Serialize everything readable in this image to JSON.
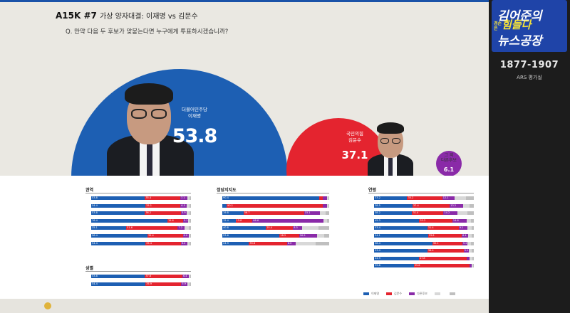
{
  "header": {
    "code": "A15K #7",
    "subtitle": "가상 양자대결: 이재명 vs 김문수",
    "question": "Q. 만약 다음 두 후보가 맞붙는다면 누구에게 투표하시겠습니까?"
  },
  "chart_data": {
    "type": "bubble",
    "candidates": [
      {
        "party": "더불어민주당",
        "name": "이재명",
        "value": 53.8,
        "color": "#1d5fb3"
      },
      {
        "party": "국민의힘",
        "name": "김문수",
        "value": 37.1,
        "color": "#e4242f"
      },
      {
        "party": "그 외",
        "name": "다른후보",
        "value": 6.1,
        "color": "#8a2aa8"
      }
    ],
    "sections": [
      {
        "title": "권역",
        "rows": [
          {
            "values": [
              53.8,
              35.4,
              7.1
            ]
          },
          {
            "values": [
              54.4,
              35.1,
              6.5
            ]
          },
          {
            "values": [
              53.8,
              36.2,
              5.9
            ]
          },
          {
            "values": [
              76.4,
              15.6,
              5.1
            ]
          },
          {
            "values": [
              35.1,
              51.6,
              7.2
            ]
          },
          {
            "values": [
              56.4,
              35.4,
              6.0
            ]
          },
          {
            "values": [
              54.4,
              35.4,
              6.4
            ]
          }
        ]
      },
      {
        "title": "성별",
        "rows": [
          {
            "values": [
              53.8,
              37.6,
              6.4
            ]
          },
          {
            "values": [
              54.4,
              35.9,
              5.9
            ]
          }
        ]
      },
      {
        "title": "정당지지도",
        "rows": [
          {
            "values": [
              90.4,
              3.8,
              4.1
            ]
          },
          {
            "values": [
              4.1,
              90.1,
              3.9
            ]
          },
          {
            "values": [
              19.8,
              56.7,
              15.1
            ]
          },
          {
            "values": [
              12.4,
              15.8,
              66.6
            ]
          },
          {
            "values": [
              40.8,
              25.4,
              8.5
            ]
          },
          {
            "values": [
              53.6,
              18.2,
              16.9
            ]
          },
          {
            "values": [
              24.9,
              35.6,
              8.0
            ]
          }
        ]
      },
      {
        "title": "연령",
        "rows": [
          {
            "values": [
              33.2,
              35.2,
              12.1
            ]
          },
          {
            "values": [
              38.5,
              37.4,
              13.2
            ]
          },
          {
            "values": [
              38.2,
              31.4,
              14.2
            ]
          },
          {
            "values": [
              45.3,
              33.2,
              14.6
            ]
          },
          {
            "values": [
              53.4,
              31.4,
              9.1
            ]
          },
          {
            "values": [
              54.1,
              33.8,
              6.4
            ]
          },
          {
            "values": [
              58.4,
              30.1,
              5.2
            ]
          },
          {
            "values": [
              53.4,
              36.4,
              5.1
            ]
          },
          {
            "values": [
              44.9,
              47.8,
              3.3
            ]
          },
          {
            "values": [
              39.8,
              55.6,
              2.5
            ]
          }
        ]
      }
    ]
  },
  "side": {
    "brand_line1": "김어준의",
    "brand_line2": "겸손은힘들다",
    "brand_small": "겸손은",
    "brand_line3": "뉴스공장",
    "phone": "1877-1907",
    "ars": "ARS 평가실"
  },
  "colors": {
    "blue": "#1d5fb3",
    "red": "#e4242f",
    "purple": "#8a2aa8"
  }
}
